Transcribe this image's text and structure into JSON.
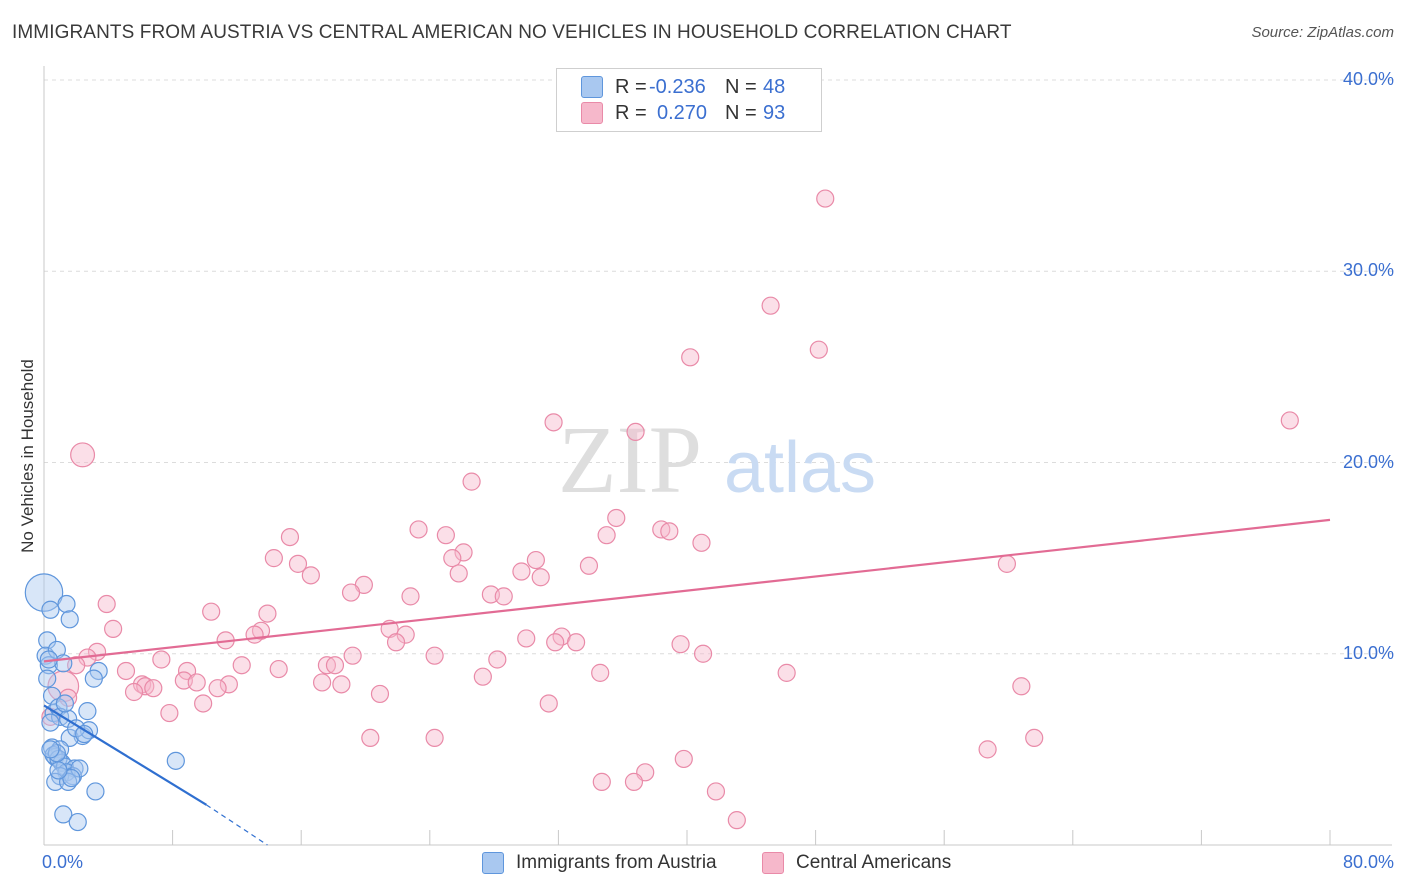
{
  "title": "IMMIGRANTS FROM AUSTRIA VS CENTRAL AMERICAN NO VEHICLES IN HOUSEHOLD CORRELATION CHART",
  "source": "Source: ZipAtlas.com",
  "watermark": {
    "zip": "ZIP",
    "atlas": "atlas"
  },
  "legend": {
    "rows": [
      {
        "r_label": "R =",
        "r_value": "-0.236",
        "n_label": "N =",
        "n_value": "48",
        "color": "#a9c8f0"
      },
      {
        "r_label": "R =",
        "r_value": "0.270",
        "n_label": "N =",
        "n_value": "93",
        "color": "#f6b8cb"
      }
    ]
  },
  "bottom_legend": {
    "austria": "Immigrants from Austria",
    "central": "Central Americans"
  },
  "colors": {
    "blue_fill": "#a9c8f0",
    "blue_stroke": "#5f96dc",
    "blue_line": "#2f6fd0",
    "pink_fill": "#f6b8cb",
    "pink_stroke": "#e98aa8",
    "pink_line": "#e26b94",
    "tick_text": "#3b6fd0"
  },
  "chart_data": {
    "type": "scatter",
    "xlabel": "",
    "ylabel": "No Vehicles in Household",
    "xlim": [
      0,
      80
    ],
    "ylim": [
      0,
      40
    ],
    "x_tick_labels": [
      {
        "value": 0,
        "label": "0.0%"
      },
      {
        "value": 80,
        "label": "80.0%"
      }
    ],
    "y_tick_labels": [
      {
        "value": 10,
        "label": "10.0%"
      },
      {
        "value": 20,
        "label": "20.0%"
      },
      {
        "value": 30,
        "label": "30.0%"
      },
      {
        "value": 40,
        "label": "40.0%"
      }
    ],
    "grid": "horizontal dashed",
    "series": [
      {
        "name": "Immigrants from Austria",
        "color": "#a9c8f0",
        "trend": {
          "x": [
            0.0,
            10.1
          ],
          "y": [
            7.3,
            2.1
          ],
          "dashed_to": [
            13.9,
            0.0
          ]
        },
        "points": [
          [
            0.0,
            13.2,
            2.2
          ],
          [
            0.2,
            10.7,
            1.0
          ],
          [
            0.4,
            12.3,
            1.0
          ],
          [
            1.4,
            12.6,
            1.0
          ],
          [
            1.6,
            11.8,
            1.0
          ],
          [
            0.1,
            9.9,
            1.0
          ],
          [
            0.3,
            9.4,
            1.0
          ],
          [
            0.8,
            10.2,
            1.0
          ],
          [
            1.2,
            9.5,
            1.0
          ],
          [
            3.4,
            9.1,
            1.0
          ],
          [
            3.1,
            8.7,
            1.0
          ],
          [
            0.2,
            8.7,
            1.0
          ],
          [
            0.5,
            7.8,
            1.0
          ],
          [
            0.6,
            6.9,
            1.0
          ],
          [
            0.9,
            7.2,
            1.0
          ],
          [
            1.0,
            6.7,
            1.0
          ],
          [
            0.4,
            6.4,
            1.0
          ],
          [
            1.5,
            6.6,
            1.0
          ],
          [
            2.7,
            7.0,
            1.0
          ],
          [
            2.4,
            5.7,
            1.0
          ],
          [
            2.8,
            6.0,
            1.0
          ],
          [
            1.6,
            5.6,
            1.0
          ],
          [
            0.5,
            5.1,
            1.0
          ],
          [
            1.0,
            5.0,
            1.0
          ],
          [
            0.7,
            4.6,
            1.0
          ],
          [
            0.6,
            4.7,
            1.0
          ],
          [
            1.1,
            4.3,
            1.0
          ],
          [
            0.9,
            4.5,
            1.0
          ],
          [
            1.3,
            4.1,
            1.0
          ],
          [
            1.9,
            4.0,
            1.0
          ],
          [
            1.4,
            3.8,
            1.0
          ],
          [
            1.0,
            3.6,
            1.0
          ],
          [
            1.8,
            3.6,
            1.0
          ],
          [
            0.7,
            3.3,
            1.0
          ],
          [
            1.5,
            3.3,
            1.0
          ],
          [
            2.2,
            4.0,
            1.0
          ],
          [
            3.2,
            2.8,
            1.0
          ],
          [
            8.2,
            4.4,
            1.0
          ],
          [
            1.2,
            1.6,
            1.0
          ],
          [
            2.1,
            1.2,
            1.0
          ],
          [
            0.3,
            9.7,
            1.0
          ],
          [
            0.8,
            4.8,
            1.0
          ],
          [
            2.0,
            6.1,
            1.0
          ],
          [
            1.7,
            3.5,
            1.0
          ],
          [
            0.4,
            5.0,
            1.0
          ],
          [
            1.3,
            7.4,
            1.0
          ],
          [
            2.5,
            5.8,
            1.0
          ],
          [
            0.9,
            3.9,
            1.0
          ]
        ]
      },
      {
        "name": "Central Americans",
        "color": "#f6b8cb",
        "trend": {
          "x": [
            0.0,
            80.0
          ],
          "y": [
            9.6,
            17.0
          ]
        },
        "points": [
          [
            48.6,
            33.8,
            1.0
          ],
          [
            45.2,
            28.2,
            1.0
          ],
          [
            48.2,
            25.9,
            1.0
          ],
          [
            40.2,
            25.5,
            1.0
          ],
          [
            77.5,
            22.2,
            1.0
          ],
          [
            31.7,
            22.1,
            1.0
          ],
          [
            36.8,
            21.6,
            1.0
          ],
          [
            2.4,
            20.4,
            1.4
          ],
          [
            26.6,
            19.0,
            1.0
          ],
          [
            35.6,
            17.1,
            1.0
          ],
          [
            23.3,
            16.5,
            1.0
          ],
          [
            38.4,
            16.5,
            1.0
          ],
          [
            38.9,
            16.4,
            1.0
          ],
          [
            35.0,
            16.2,
            1.0
          ],
          [
            25.0,
            16.2,
            1.0
          ],
          [
            15.3,
            16.1,
            1.0
          ],
          [
            40.9,
            15.8,
            1.0
          ],
          [
            26.1,
            15.3,
            1.0
          ],
          [
            25.4,
            15.0,
            1.0
          ],
          [
            14.3,
            15.0,
            1.0
          ],
          [
            30.6,
            14.9,
            1.0
          ],
          [
            15.8,
            14.7,
            1.0
          ],
          [
            59.9,
            14.7,
            1.0
          ],
          [
            33.9,
            14.6,
            1.0
          ],
          [
            29.7,
            14.3,
            1.0
          ],
          [
            25.8,
            14.2,
            1.0
          ],
          [
            16.6,
            14.1,
            1.0
          ],
          [
            30.9,
            14.0,
            1.0
          ],
          [
            19.9,
            13.6,
            1.0
          ],
          [
            19.1,
            13.2,
            1.0
          ],
          [
            27.8,
            13.1,
            1.0
          ],
          [
            22.8,
            13.0,
            1.0
          ],
          [
            28.6,
            13.0,
            1.0
          ],
          [
            3.9,
            12.6,
            1.0
          ],
          [
            10.4,
            12.2,
            1.0
          ],
          [
            13.9,
            12.1,
            1.0
          ],
          [
            4.3,
            11.3,
            1.0
          ],
          [
            21.5,
            11.3,
            1.0
          ],
          [
            13.5,
            11.2,
            1.0
          ],
          [
            13.1,
            11.0,
            1.0
          ],
          [
            22.5,
            11.0,
            1.0
          ],
          [
            30.0,
            10.8,
            1.0
          ],
          [
            11.3,
            10.7,
            1.0
          ],
          [
            32.2,
            10.9,
            1.0
          ],
          [
            21.9,
            10.6,
            1.0
          ],
          [
            31.8,
            10.6,
            1.0
          ],
          [
            39.6,
            10.5,
            1.0
          ],
          [
            33.1,
            10.6,
            1.0
          ],
          [
            3.3,
            10.1,
            1.0
          ],
          [
            2.7,
            9.8,
            1.0
          ],
          [
            7.3,
            9.7,
            1.0
          ],
          [
            24.3,
            9.9,
            1.0
          ],
          [
            19.2,
            9.9,
            1.0
          ],
          [
            28.2,
            9.7,
            1.0
          ],
          [
            41.0,
            10.0,
            1.0
          ],
          [
            12.3,
            9.4,
            1.0
          ],
          [
            17.6,
            9.4,
            1.0
          ],
          [
            18.1,
            9.4,
            1.0
          ],
          [
            14.6,
            9.2,
            1.0
          ],
          [
            5.1,
            9.1,
            1.0
          ],
          [
            8.9,
            9.1,
            1.0
          ],
          [
            34.6,
            9.0,
            1.0
          ],
          [
            46.2,
            9.0,
            1.0
          ],
          [
            27.3,
            8.8,
            1.0
          ],
          [
            8.7,
            8.6,
            1.0
          ],
          [
            11.5,
            8.4,
            1.0
          ],
          [
            9.5,
            8.5,
            1.0
          ],
          [
            17.3,
            8.5,
            1.0
          ],
          [
            18.5,
            8.4,
            1.0
          ],
          [
            1.2,
            8.3,
            1.8
          ],
          [
            6.1,
            8.4,
            1.0
          ],
          [
            6.3,
            8.3,
            1.0
          ],
          [
            6.8,
            8.2,
            1.0
          ],
          [
            5.6,
            8.0,
            1.0
          ],
          [
            10.8,
            8.2,
            1.0
          ],
          [
            20.9,
            7.9,
            1.0
          ],
          [
            60.8,
            8.3,
            1.0
          ],
          [
            9.9,
            7.4,
            1.0
          ],
          [
            31.4,
            7.4,
            1.0
          ],
          [
            7.8,
            6.9,
            1.0
          ],
          [
            20.3,
            5.6,
            1.0
          ],
          [
            24.3,
            5.6,
            1.0
          ],
          [
            61.6,
            5.6,
            1.0
          ],
          [
            58.7,
            5.0,
            1.0
          ],
          [
            39.8,
            4.5,
            1.0
          ],
          [
            37.4,
            3.8,
            1.0
          ],
          [
            34.7,
            3.3,
            1.0
          ],
          [
            36.7,
            3.3,
            1.0
          ],
          [
            41.8,
            2.8,
            1.0
          ],
          [
            43.1,
            1.3,
            1.0
          ],
          [
            1.5,
            7.7,
            1.0
          ],
          [
            0.4,
            6.7,
            1.0
          ],
          [
            2.0,
            9.4,
            1.0
          ]
        ]
      }
    ]
  }
}
